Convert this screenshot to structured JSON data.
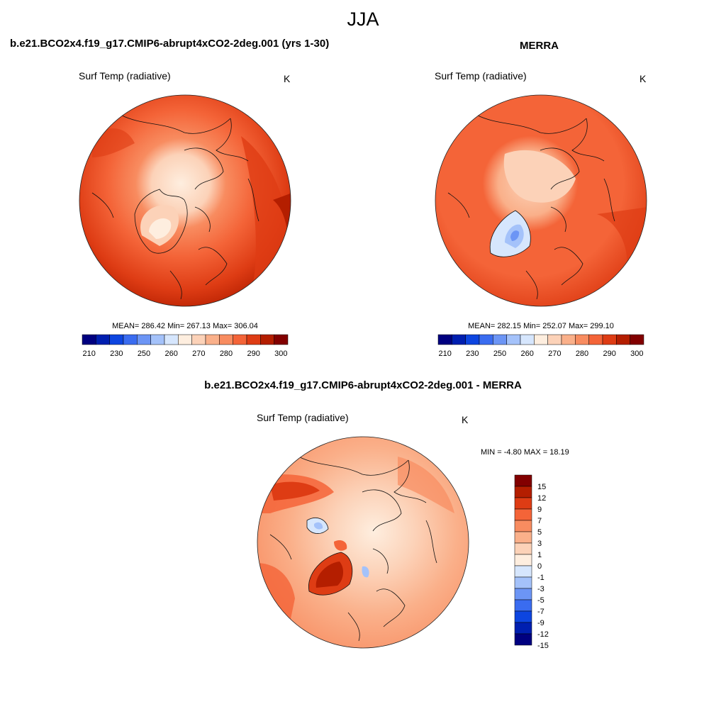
{
  "figure": {
    "title": "JJA"
  },
  "panels": [
    {
      "title": "b.e21.BCO2x4.f19_g17.CMIP6-abrupt4xCO2-2deg.001 (yrs 1-30)",
      "variable": "Surf Temp (radiative)",
      "units": "K",
      "stats": "MEAN= 286.42  Min= 267.13  Max= 306.04",
      "colorbar": {
        "colors": [
          "#000080",
          "#001fb0",
          "#0d45e0",
          "#3a6cf0",
          "#6c95f5",
          "#a4c2fa",
          "#d6e6fd",
          "#feeedf",
          "#fcd2b8",
          "#fab08a",
          "#f88c60",
          "#f46438",
          "#de3c14",
          "#b41e00",
          "#820000"
        ],
        "labels": [
          "210",
          "230",
          "250",
          "260",
          "270",
          "280",
          "290",
          "300"
        ]
      },
      "map": {
        "projection": "north-polar-stereographic",
        "dominant_color": "#f2693a"
      }
    },
    {
      "title": "MERRA",
      "variable": "Surf Temp (radiative)",
      "units": "K",
      "stats": "MEAN= 282.15  Min= 252.07  Max= 299.10",
      "colorbar": {
        "colors": [
          "#000080",
          "#001fb0",
          "#0d45e0",
          "#3a6cf0",
          "#6c95f5",
          "#a4c2fa",
          "#d6e6fd",
          "#feeedf",
          "#fcd2b8",
          "#fab08a",
          "#f88c60",
          "#f46438",
          "#de3c14",
          "#b41e00",
          "#820000"
        ],
        "labels": [
          "210",
          "230",
          "250",
          "260",
          "270",
          "280",
          "290",
          "300"
        ]
      },
      "map": {
        "projection": "north-polar-stereographic",
        "dominant_color": "#ee5a2e"
      }
    },
    {
      "title": "b.e21.BCO2x4.f19_g17.CMIP6-abrupt4xCO2-2deg.001 - MERRA",
      "variable": "Surf Temp (radiative)",
      "units": "K",
      "stats": "MIN =  -4.80 MAX =  18.19",
      "colorbar": {
        "colors": [
          "#820000",
          "#b41e00",
          "#de3c14",
          "#f46438",
          "#f88c60",
          "#fab08a",
          "#fcd2b8",
          "#feeedf",
          "#d6e6fd",
          "#a4c2fa",
          "#6c95f5",
          "#3a6cf0",
          "#0d45e0",
          "#001fb0",
          "#000080"
        ],
        "labels": [
          "15",
          "12",
          "9",
          "7",
          "5",
          "3",
          "1",
          "0",
          "-1",
          "-3",
          "-5",
          "-7",
          "-9",
          "-12",
          "-15"
        ]
      },
      "map": {
        "projection": "north-polar-stereographic",
        "dominant_color": "#f8a07a"
      }
    }
  ]
}
